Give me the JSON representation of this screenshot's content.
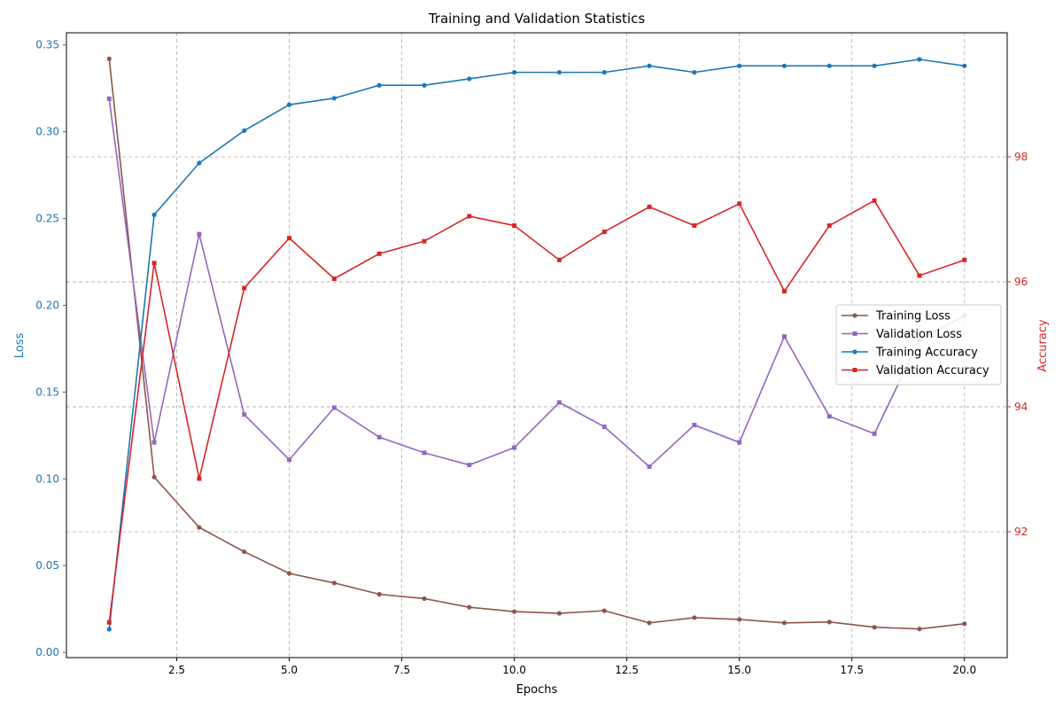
{
  "chart_data": {
    "type": "line",
    "title": "Training and Validation Statistics",
    "xlabel": "Epochs",
    "ylabel_left": "Loss",
    "ylabel_right": "Accuracy",
    "xlim": [
      0.05,
      20.95
    ],
    "ylim_left": [
      -0.003,
      0.357
    ],
    "ylim_right": [
      90.2,
      93.92
    ],
    "ylim_right_ticks_scale": [
      90.2,
      99.9
    ],
    "x": [
      1,
      2,
      3,
      4,
      5,
      6,
      7,
      8,
      9,
      10,
      11,
      12,
      13,
      14,
      15,
      16,
      17,
      18,
      19,
      20
    ],
    "x_ticks": [
      "2.5",
      "5.0",
      "7.5",
      "10.0",
      "12.5",
      "15.0",
      "17.5",
      "20.0"
    ],
    "y_left_ticks": [
      "0.00",
      "0.05",
      "0.10",
      "0.15",
      "0.20",
      "0.25",
      "0.30",
      "0.35"
    ],
    "y_right_ticks": [
      "92",
      "94",
      "96",
      "98"
    ],
    "grid": true,
    "legend_position": "center-right",
    "left_axis_color": "#1f77b4",
    "right_axis_color": "#d62728",
    "series": [
      {
        "name": "Training Loss",
        "axis": "left",
        "color": "#8c564b",
        "marker": "circle",
        "values": [
          0.342,
          0.101,
          0.072,
          0.058,
          0.0455,
          0.04,
          0.0335,
          0.031,
          0.026,
          0.0235,
          0.0225,
          0.024,
          0.017,
          0.02,
          0.019,
          0.017,
          0.0175,
          0.0145,
          0.0135,
          0.0165
        ]
      },
      {
        "name": "Validation Loss",
        "axis": "left",
        "color": "#9467bd",
        "marker": "square",
        "values": [
          0.319,
          0.121,
          0.241,
          0.137,
          0.111,
          0.141,
          0.124,
          0.115,
          0.108,
          0.118,
          0.144,
          0.13,
          0.107,
          0.131,
          0.121,
          0.182,
          0.136,
          0.126,
          0.18,
          0.194
        ]
      },
      {
        "name": "Training Accuracy",
        "axis": "left_scaled_accuracy",
        "color": "#1f77b4",
        "marker": "circle",
        "values": [
          90.5,
          96.9,
          97.7,
          98.2,
          98.6,
          98.7,
          98.9,
          98.9,
          99.0,
          99.1,
          99.1,
          99.1,
          99.2,
          99.1,
          99.2,
          99.2,
          99.2,
          99.2,
          99.3,
          99.2
        ]
      },
      {
        "name": "Validation Accuracy",
        "axis": "right",
        "color": "#d62728",
        "marker": "square",
        "values": [
          90.55,
          96.3,
          92.85,
          95.9,
          96.7,
          96.05,
          96.45,
          96.65,
          97.05,
          96.9,
          96.35,
          96.8,
          97.2,
          96.9,
          97.25,
          95.85,
          96.9,
          97.3,
          96.1,
          96.35
        ]
      }
    ]
  }
}
